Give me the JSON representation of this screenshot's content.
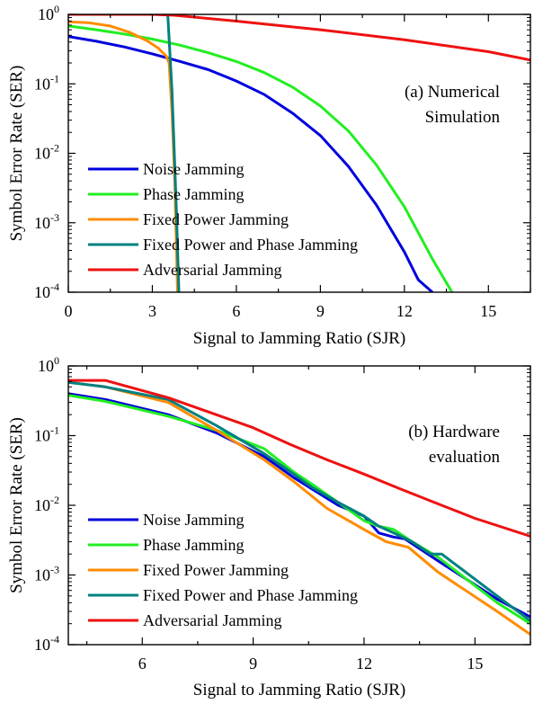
{
  "chart_data": [
    {
      "type": "line",
      "panel_label": "(a) Numerical",
      "panel_label_2": "Simulation",
      "xlabel": "Signal to Jamming Ratio (SJR)",
      "ylabel": "Symbol Error Rate (SER)",
      "xlim": [
        0,
        16.5
      ],
      "ylim": [
        0.0001,
        1
      ],
      "yscale": "log",
      "xticks": [
        0,
        3,
        6,
        9,
        12,
        15
      ],
      "xtick_labels": [
        "0",
        "3",
        "6",
        "9",
        "12",
        "15"
      ],
      "yticks": [
        0.0001,
        0.001,
        0.01,
        0.1,
        1
      ],
      "ytick_bases": [
        "10",
        "10",
        "10",
        "10",
        "10"
      ],
      "ytick_exps": [
        "-4",
        "-3",
        "-2",
        "-1",
        "0"
      ],
      "legend_position": "bottom-left",
      "series": [
        {
          "name": "Noise Jamming",
          "color": "#0000dd",
          "x": [
            0,
            1,
            2,
            3,
            4,
            5,
            6,
            7,
            8,
            9,
            10,
            11,
            12,
            12.5,
            13
          ],
          "y": [
            0.48,
            0.41,
            0.34,
            0.27,
            0.21,
            0.16,
            0.11,
            0.07,
            0.038,
            0.018,
            0.0065,
            0.0018,
            0.00038,
            0.00015,
            0.0001
          ]
        },
        {
          "name": "Phase Jamming",
          "color": "#22ee22",
          "x": [
            0,
            1,
            2,
            3,
            4,
            5,
            6,
            7,
            8,
            9,
            10,
            11,
            12,
            13,
            13.7
          ],
          "y": [
            0.68,
            0.6,
            0.52,
            0.44,
            0.36,
            0.28,
            0.21,
            0.145,
            0.09,
            0.048,
            0.021,
            0.0068,
            0.0017,
            0.0003,
            0.0001
          ]
        },
        {
          "name": "Fixed Power Jamming",
          "color": "#ff8c00",
          "x": [
            0,
            0.7,
            1.5,
            2.2,
            2.8,
            3.2,
            3.5,
            3.6,
            3.7,
            3.8,
            3.9
          ],
          "y": [
            0.78,
            0.76,
            0.68,
            0.55,
            0.42,
            0.33,
            0.25,
            0.2,
            0.04,
            0.004,
            0.0001
          ]
        },
        {
          "name": "Fixed Power and Phase Jamming",
          "color": "#008080",
          "x": [
            3.55,
            3.7,
            3.85,
            3.95
          ],
          "y": [
            1,
            0.08,
            0.002,
            0.0001
          ]
        },
        {
          "name": "Adversarial Jamming",
          "color": "#ee1111",
          "x": [
            0,
            3,
            3.8,
            6,
            9,
            12,
            15,
            16.5
          ],
          "y": [
            1,
            1,
            0.97,
            0.8,
            0.6,
            0.43,
            0.29,
            0.22
          ]
        }
      ]
    },
    {
      "type": "line",
      "panel_label": "(b) Hardware",
      "panel_label_2": "evaluation",
      "xlabel": "Signal to Jamming Ratio (SJR)",
      "ylabel": "Symbol Error Rate (SER)",
      "xlim": [
        4,
        16.5
      ],
      "ylim": [
        0.0001,
        1
      ],
      "yscale": "log",
      "xticks": [
        6,
        9,
        12,
        15
      ],
      "xtick_labels": [
        "6",
        "9",
        "12",
        "15"
      ],
      "yticks": [
        0.0001,
        0.001,
        0.01,
        0.1,
        1
      ],
      "ytick_bases": [
        "10",
        "10",
        "10",
        "10",
        "10"
      ],
      "ytick_exps": [
        "-4",
        "-3",
        "-2",
        "-1",
        "0"
      ],
      "legend_position": "bottom-left",
      "series": [
        {
          "name": "Noise Jamming",
          "color": "#0000dd",
          "x": [
            4,
            5,
            6.7,
            8,
            9.3,
            10.1,
            10.6,
            11.3,
            12,
            12.4,
            12.8,
            13.1,
            14,
            15.6,
            16.5
          ],
          "y": [
            0.4,
            0.33,
            0.2,
            0.11,
            0.05,
            0.025,
            0.017,
            0.01,
            0.007,
            0.004,
            0.0035,
            0.0033,
            0.0016,
            0.00045,
            0.00025
          ]
        },
        {
          "name": "Phase Jamming",
          "color": "#22ee22",
          "x": [
            4,
            5,
            6.7,
            8,
            9.3,
            10.1,
            10.6,
            11.3,
            12,
            12.4,
            12.8,
            13.3,
            14,
            15.6,
            16.5
          ],
          "y": [
            0.38,
            0.31,
            0.19,
            0.12,
            0.065,
            0.03,
            0.02,
            0.011,
            0.006,
            0.005,
            0.0045,
            0.003,
            0.0018,
            0.0004,
            0.0002
          ]
        },
        {
          "name": "Fixed Power Jamming",
          "color": "#ff8c00",
          "x": [
            4,
            5,
            6.7,
            8,
            9.3,
            10.1,
            11,
            12,
            12.6,
            13.2,
            14,
            15.6,
            16.5
          ],
          "y": [
            0.58,
            0.5,
            0.3,
            0.12,
            0.045,
            0.022,
            0.009,
            0.0045,
            0.003,
            0.0025,
            0.0011,
            0.0003,
            0.00014
          ]
        },
        {
          "name": "Fixed Power and Phase Jamming",
          "color": "#008080",
          "x": [
            4,
            5,
            6.7,
            8,
            9.3,
            10.1,
            10.6,
            11.3,
            12,
            12.4,
            12.8,
            13.3,
            13.8,
            14.1,
            15.6,
            16.5
          ],
          "y": [
            0.58,
            0.5,
            0.33,
            0.14,
            0.055,
            0.028,
            0.018,
            0.011,
            0.007,
            0.005,
            0.004,
            0.003,
            0.002,
            0.002,
            0.0005,
            0.00022
          ]
        },
        {
          "name": "Adversarial Jamming",
          "color": "#ee1111",
          "x": [
            4,
            5,
            6.7,
            8,
            9,
            10,
            11,
            12,
            13,
            14,
            15,
            16.5
          ],
          "y": [
            0.62,
            0.62,
            0.35,
            0.2,
            0.13,
            0.075,
            0.045,
            0.028,
            0.017,
            0.0105,
            0.0065,
            0.0036
          ]
        }
      ]
    }
  ]
}
